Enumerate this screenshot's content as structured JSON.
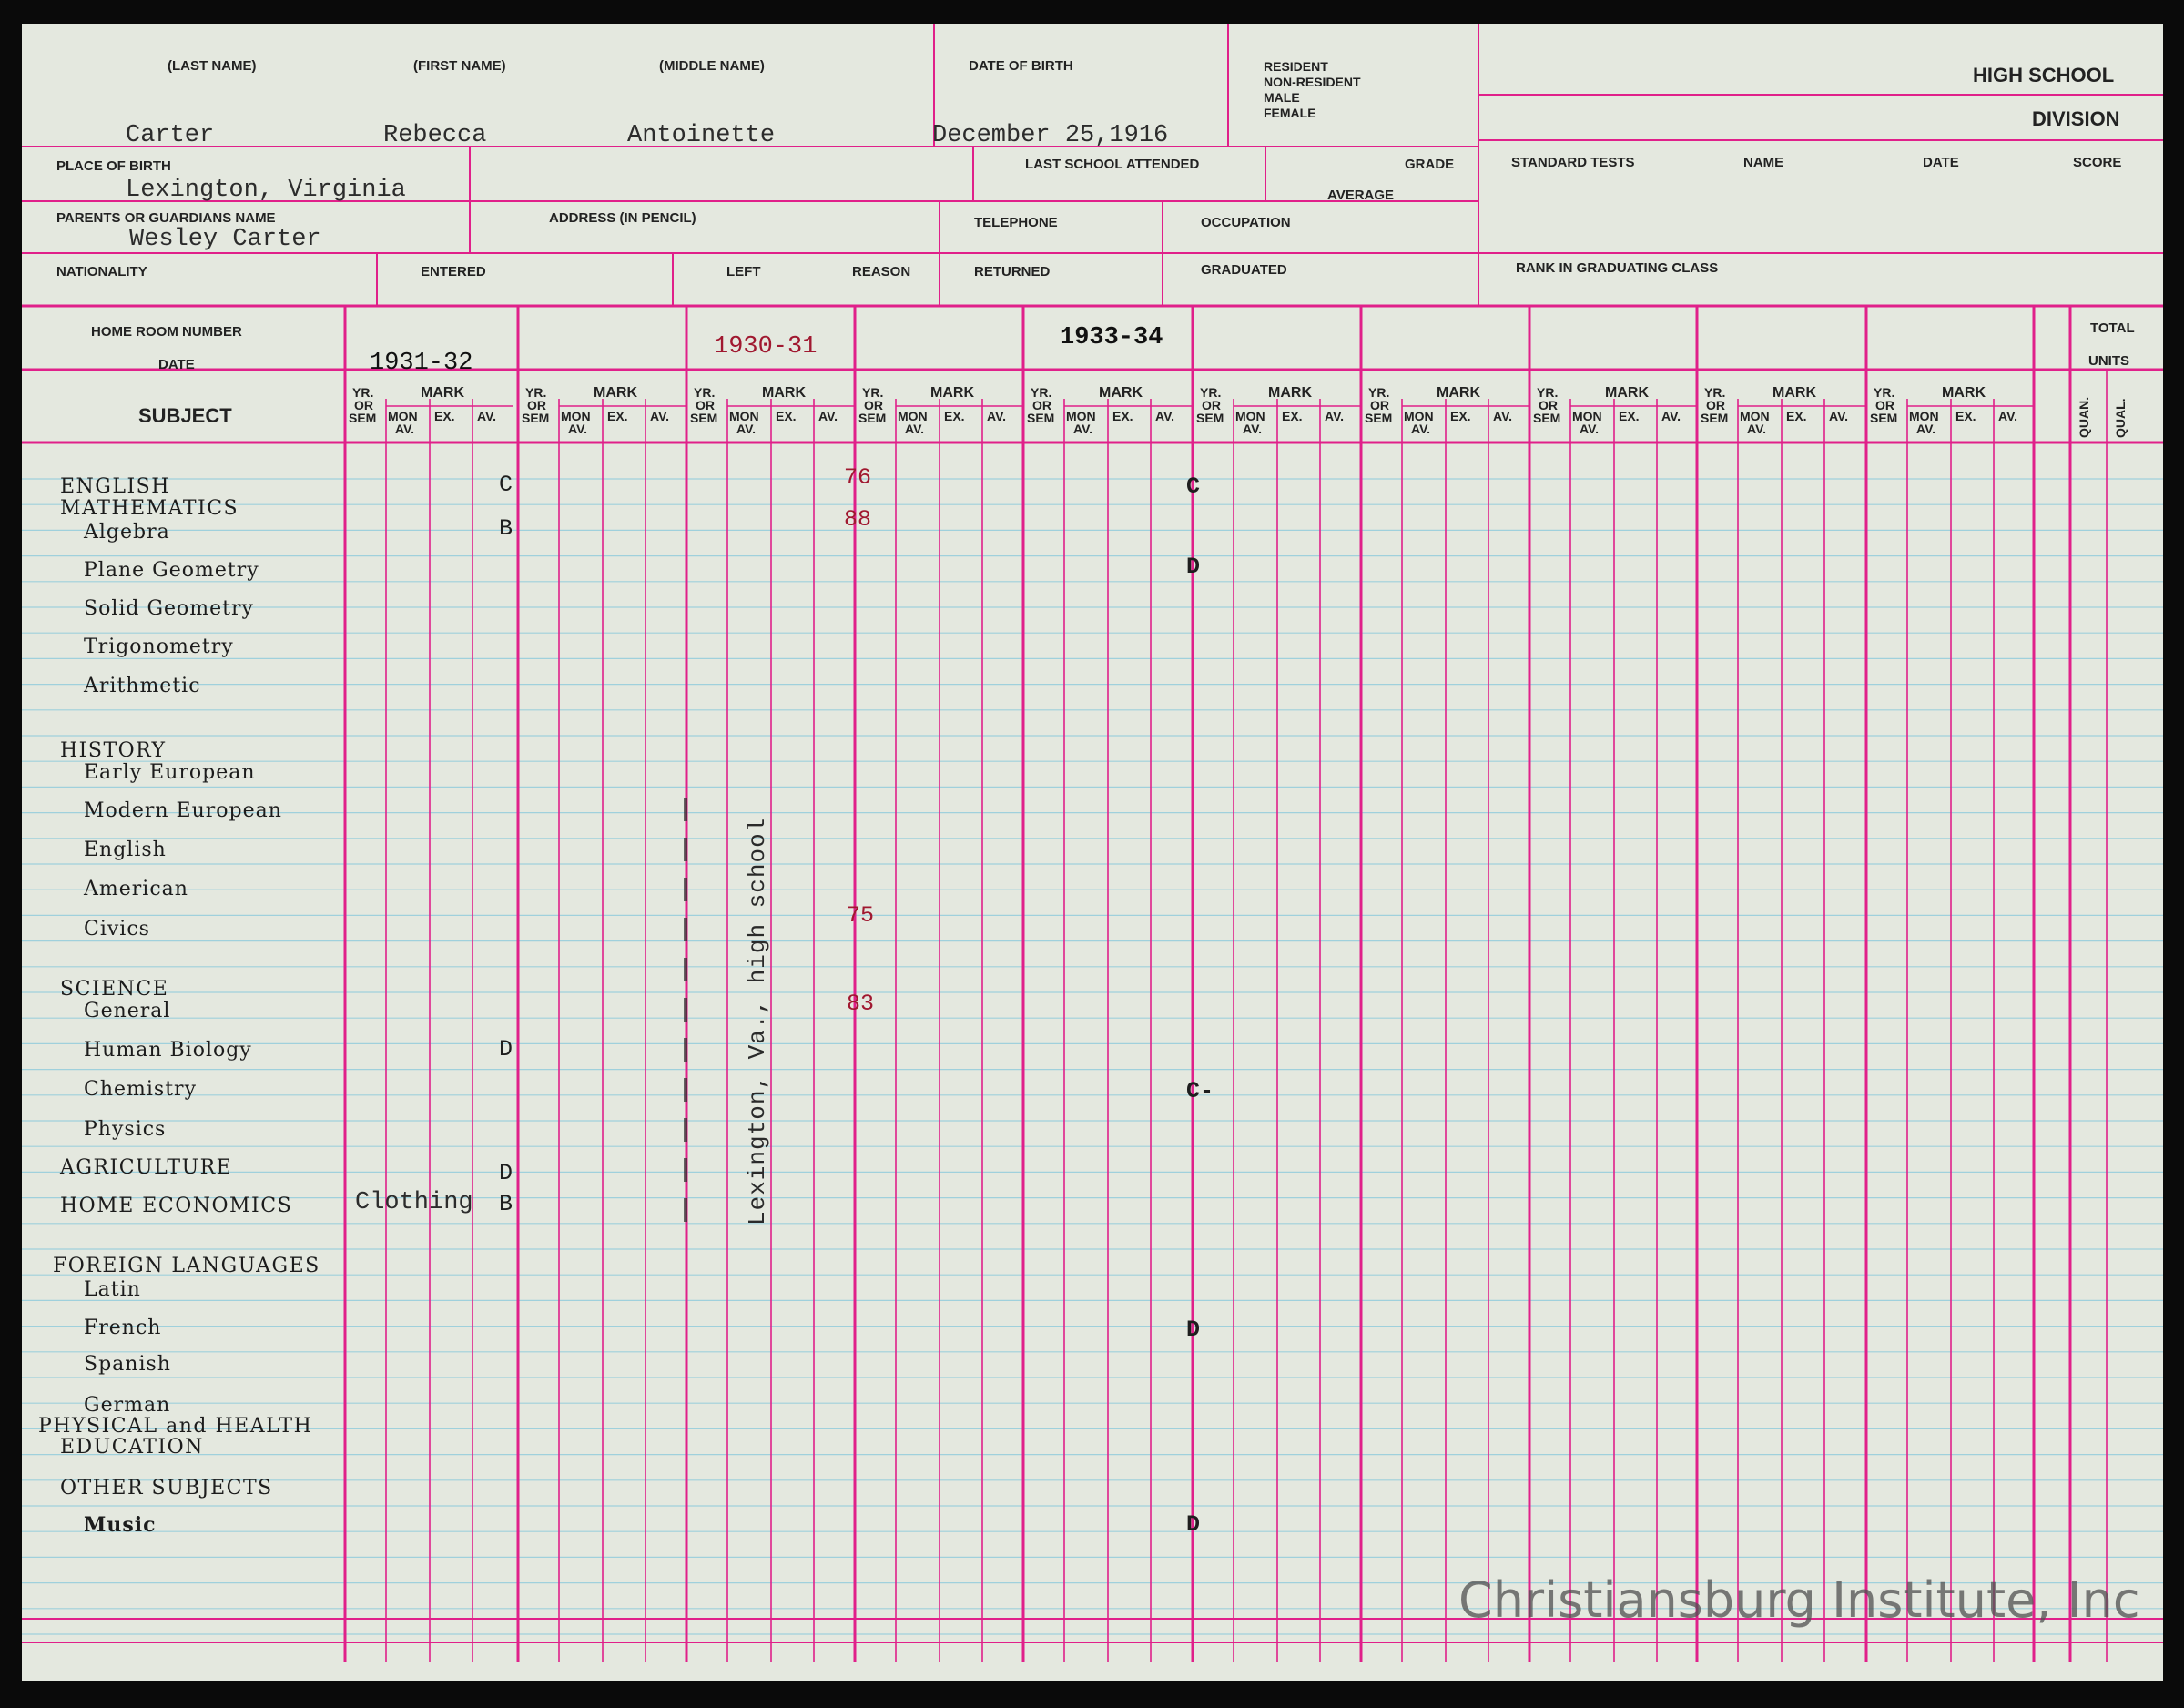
{
  "header": {
    "labels": {
      "last_name": "(LAST NAME)",
      "first_name": "(FIRST NAME)",
      "middle_name": "(MIDDLE NAME)",
      "date_of_birth": "DATE OF BIRTH",
      "resident": "RESIDENT",
      "non_resident": "NON-RESIDENT",
      "male": "MALE",
      "female": "FEMALE",
      "high_school": "HIGH SCHOOL",
      "division": "DIVISION",
      "place_of_birth": "PLACE OF BIRTH",
      "last_school_attended": "LAST SCHOOL ATTENDED",
      "grade": "GRADE",
      "average": "AVERAGE",
      "standard_tests": "STANDARD TESTS",
      "name": "NAME",
      "date": "DATE",
      "score": "SCORE",
      "parents_guardians": "PARENTS OR GUARDIANS NAME",
      "address": "ADDRESS (IN PENCIL)",
      "telephone": "TELEPHONE",
      "occupation": "OCCUPATION",
      "nationality": "NATIONALITY",
      "entered": "ENTERED",
      "left": "LEFT",
      "reason": "REASON",
      "returned": "RETURNED",
      "graduated": "GRADUATED",
      "rank": "RANK IN GRADUATING CLASS"
    },
    "values": {
      "last_name": "Carter",
      "first_name": "Rebecca",
      "middle_name": "Antoinette",
      "date_of_birth": "December 25,1916",
      "place_of_birth": "Lexington, Virginia",
      "guardian": "Wesley Carter"
    }
  },
  "grid": {
    "home_room_number": "HOME ROOM NUMBER",
    "date_label": "DATE",
    "subject_label": "SUBJECT",
    "total": "TOTAL",
    "units": "UNITS",
    "quan": "QUAN.",
    "qual": "QUAL.",
    "col_yr": "YR.",
    "col_or": "OR",
    "col_sem": "SEM",
    "col_mark": "MARK",
    "col_mon": "MON",
    "col_av_sub": "AV.",
    "col_ex": "EX.",
    "col_av": "AV.",
    "years": [
      "1931-32",
      "",
      "1930-31",
      "",
      "1933-34",
      "",
      "",
      "",
      "",
      "",
      ""
    ]
  },
  "subjects": [
    {
      "label": "ENGLISH",
      "head": true
    },
    {
      "label": "MATHEMATICS",
      "head": true
    },
    {
      "label": "Algebra"
    },
    {
      "label": "Plane Geometry"
    },
    {
      "label": "Solid Geometry"
    },
    {
      "label": "Trigonometry"
    },
    {
      "label": "Arithmetic"
    },
    {
      "label": "HISTORY",
      "head": true
    },
    {
      "label": "Early European"
    },
    {
      "label": "Modern European"
    },
    {
      "label": "English"
    },
    {
      "label": "American"
    },
    {
      "label": "Civics"
    },
    {
      "label": "SCIENCE",
      "head": true
    },
    {
      "label": "General"
    },
    {
      "label": "Human Biology"
    },
    {
      "label": "Chemistry"
    },
    {
      "label": "Physics"
    },
    {
      "label": "AGRICULTURE",
      "head": true
    },
    {
      "label": "HOME ECONOMICS",
      "head": true
    },
    {
      "label": "FOREIGN LANGUAGES",
      "head": true
    },
    {
      "label": "Latin"
    },
    {
      "label": "French"
    },
    {
      "label": "Spanish"
    },
    {
      "label": "German"
    },
    {
      "label": "PHYSICAL and HEALTH",
      "head": true
    },
    {
      "label": "EDUCATION",
      "head": true
    },
    {
      "label": "OTHER SUBJECTS",
      "head": true
    },
    {
      "label": "Music",
      "bold": true
    }
  ],
  "marks": {
    "english_1931": "C",
    "english_1930": "76",
    "english_1933": "C",
    "algebra_1931": "B",
    "algebra_1930": "88",
    "plane_geometry_1933": "D",
    "civics_1930": "75",
    "general_science_1930": "83",
    "human_biology_1931": "D",
    "chemistry_1933": "C-",
    "agriculture_1931": "D",
    "home_economics_note": "Clothing",
    "home_economics_1931": "B",
    "french_1933": "D",
    "music_1933": "D"
  },
  "stamp": "Lexington, Va., high school",
  "watermark": "Christiansburg Institute, Inc",
  "colors": {
    "paper": "#e4e8df",
    "rule_pink": "#e0208a",
    "rule_blue": "#9fd0dc",
    "red_ink": "#a01830",
    "dark_ink": "#222222"
  }
}
